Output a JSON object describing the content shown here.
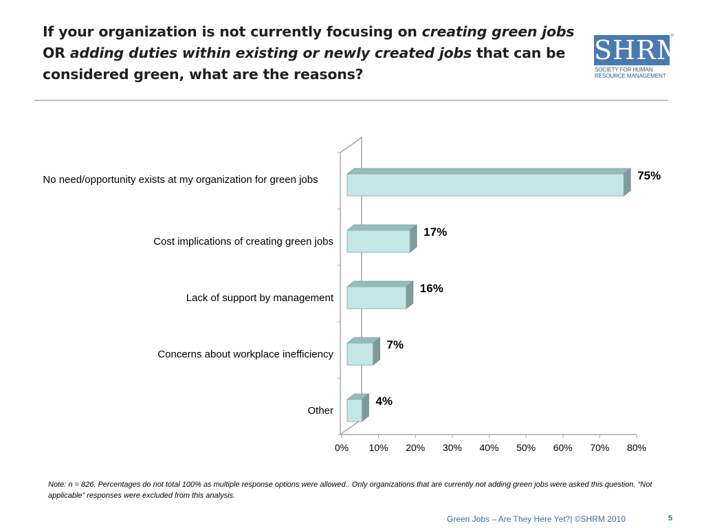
{
  "title": {
    "part1": "If your organization is not currently focusing on ",
    "part2": "creating green jobs",
    "part3": " OR ",
    "part4": "adding duties within existing or newly created jobs",
    "part5": " that can be considered green, what are the reasons?"
  },
  "logo": {
    "name": "SHRM",
    "reg": "®",
    "line1": "SOCIETY FOR HUMAN",
    "line2": "RESOURCE MANAGEMENT"
  },
  "chart_data": {
    "type": "bar",
    "orientation": "horizontal",
    "style": "3d",
    "categories": [
      "No need/opportunity exists at my organization for green jobs",
      "Cost implications of creating green jobs",
      "Lack of support by management",
      "Concerns about workplace inefficiency",
      "Other"
    ],
    "values": [
      75,
      17,
      16,
      7,
      4
    ],
    "data_labels": [
      "75%",
      "17%",
      "16%",
      "7%",
      "4%"
    ],
    "xlim": [
      0,
      80
    ],
    "x_ticks": [
      "0%",
      "10%",
      "20%",
      "30%",
      "40%",
      "50%",
      "60%",
      "70%",
      "80%"
    ],
    "grid": false,
    "legend": "none",
    "bar_color": "#c5e6e6",
    "bar_top_color": "#94bcbc",
    "bar_side_color": "#7e9c9c"
  },
  "note": "Note: n = 826. Percentages do not total 100% as multiple response options were allowed.. Only organizations that are currently not adding green jobs were asked this question. “Not applicable” responses were excluded from this analysis.",
  "footer": {
    "text": "Green Jobs – Are They Here Yet?| ©SHRM 2010",
    "page": "5"
  }
}
